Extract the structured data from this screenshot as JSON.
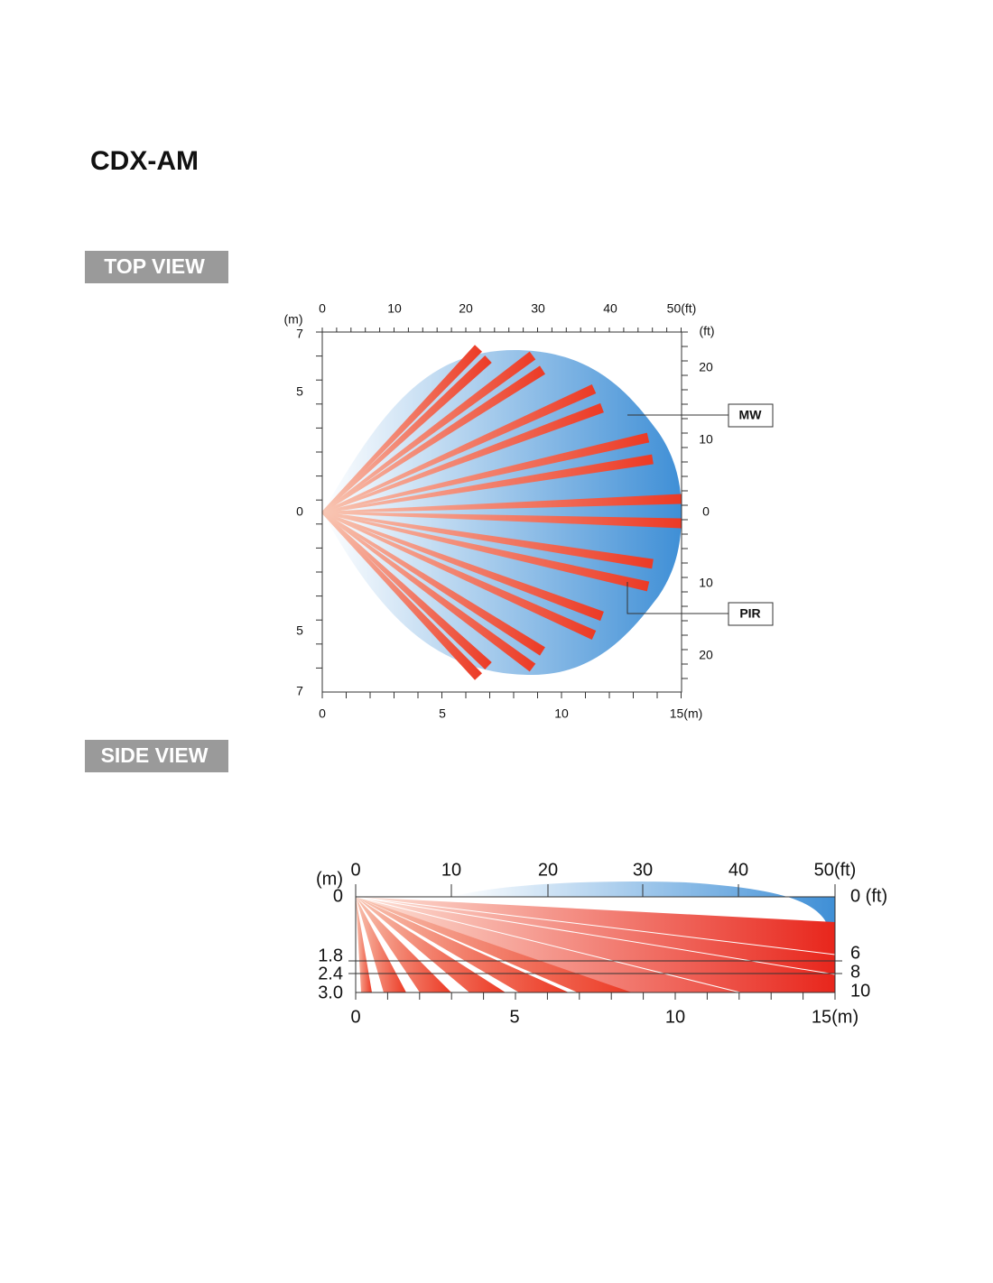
{
  "title": "CDX-AM",
  "top_view": {
    "label": "TOP VIEW",
    "top_labels": [
      "0",
      "10",
      "20",
      "30",
      "40",
      "50(ft)"
    ],
    "left_unit": "(m)",
    "left_labels": [
      "7",
      "5",
      "0",
      "5",
      "7"
    ],
    "right_unit": "(ft)",
    "right_labels": [
      "20",
      "10",
      "0",
      "10",
      "20"
    ],
    "bottom_labels": [
      "0",
      "5",
      "10",
      "15(m)"
    ],
    "callouts": [
      "MW",
      "PIR"
    ]
  },
  "side_view": {
    "label": "SIDE VIEW",
    "top_labels": [
      "0",
      "10",
      "20",
      "30",
      "40",
      "50(ft)"
    ],
    "left_unit": "(m)",
    "left_labels": [
      "0",
      "1.8",
      "2.4",
      "3.0"
    ],
    "right_labels": [
      "0 (ft)",
      "6",
      "8",
      "10"
    ],
    "bottom_labels": [
      "0",
      "5",
      "10",
      "15(m)"
    ]
  }
}
